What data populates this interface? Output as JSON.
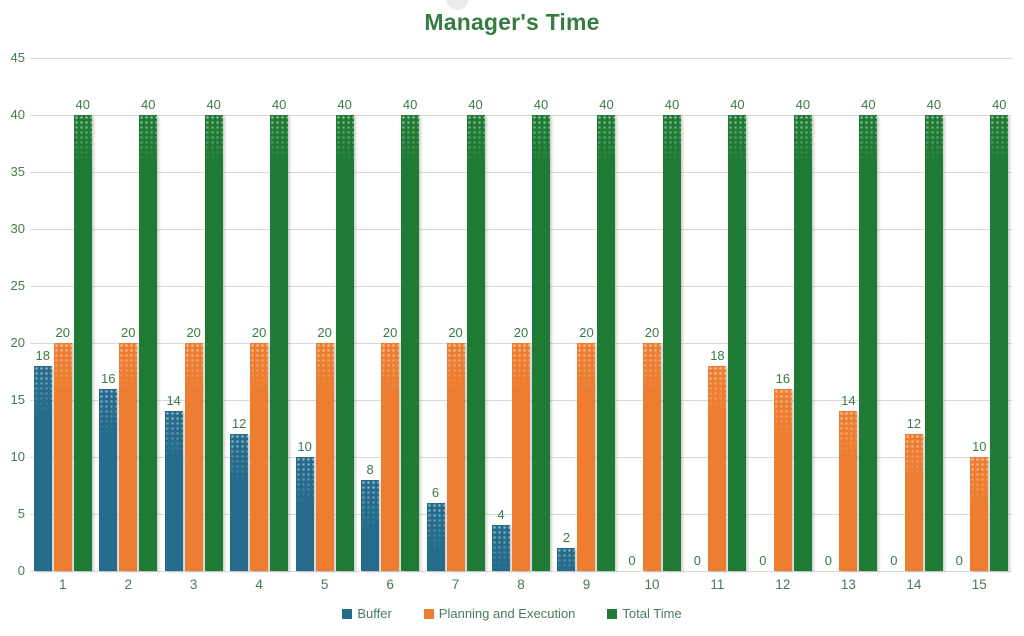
{
  "chart_data": {
    "type": "bar",
    "title": "Manager's Time",
    "categories": [
      "1",
      "2",
      "3",
      "4",
      "5",
      "6",
      "7",
      "8",
      "9",
      "10",
      "11",
      "12",
      "13",
      "14",
      "15"
    ],
    "series": [
      {
        "name": "Buffer",
        "color": "#256B8C",
        "values": [
          18,
          16,
          14,
          12,
          10,
          8,
          6,
          4,
          2,
          0,
          0,
          0,
          0,
          0,
          0
        ]
      },
      {
        "name": "Planning and Execution",
        "color": "#ED7D31",
        "values": [
          20,
          20,
          20,
          20,
          20,
          20,
          20,
          20,
          20,
          20,
          18,
          16,
          14,
          12,
          10
        ]
      },
      {
        "name": "Total Time",
        "color": "#1F7B33",
        "values": [
          40,
          40,
          40,
          40,
          40,
          40,
          40,
          40,
          40,
          40,
          40,
          40,
          40,
          40,
          40
        ]
      }
    ],
    "ylim": [
      0,
      45
    ],
    "ytick_step": 5,
    "yticks": [
      0,
      5,
      10,
      15,
      20,
      25,
      30,
      35,
      40,
      45
    ],
    "grid": true,
    "show_data_labels": true,
    "legend_position": "bottom",
    "colors": {
      "title_text": "#377D41",
      "axis_text": "#457B50",
      "data_label_text": "#3A7A46",
      "gridline": "#D9D9D9",
      "background": "#FFFFFF"
    }
  }
}
